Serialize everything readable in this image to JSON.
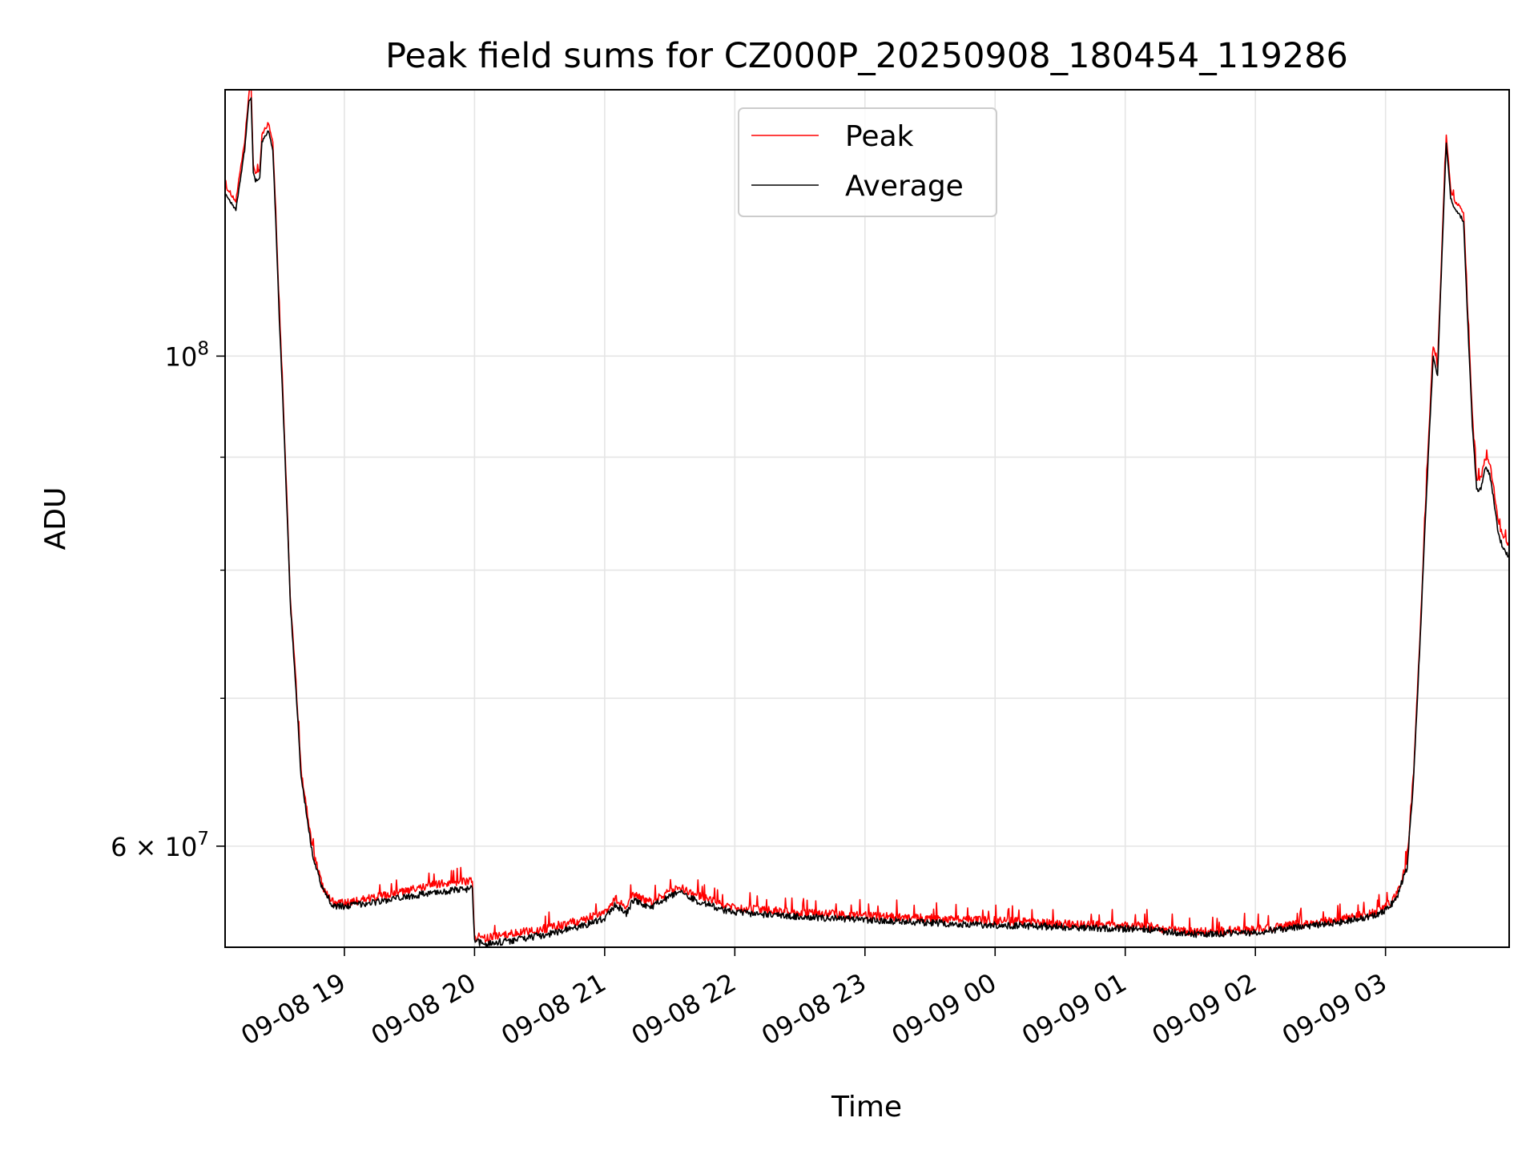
{
  "chart_data": {
    "type": "line",
    "title": "Peak field sums for CZ000P_20250908_180454_119286",
    "xlabel": "Time",
    "ylabel": "ADU",
    "y_scale": "log",
    "ylim": [
      54000000,
      132000000
    ],
    "xlim": [
      "2025-09-08 18:05",
      "2025-09-09 03:57"
    ],
    "grid": true,
    "legend_position": "top-center",
    "x_ticks": [
      {
        "t": "2025-09-08 19:00",
        "label": "09-08 19"
      },
      {
        "t": "2025-09-08 20:00",
        "label": "09-08 20"
      },
      {
        "t": "2025-09-08 21:00",
        "label": "09-08 21"
      },
      {
        "t": "2025-09-08 22:00",
        "label": "09-08 22"
      },
      {
        "t": "2025-09-08 23:00",
        "label": "09-08 23"
      },
      {
        "t": "2025-09-09 00:00",
        "label": "09-09 00"
      },
      {
        "t": "2025-09-09 01:00",
        "label": "09-09 01"
      },
      {
        "t": "2025-09-09 02:00",
        "label": "09-09 02"
      },
      {
        "t": "2025-09-09 03:00",
        "label": "09-09 03"
      }
    ],
    "y_ticks": [
      {
        "value": 100000000,
        "base": "10",
        "exp": "8",
        "mant": ""
      },
      {
        "value": 60000000,
        "base": "10",
        "exp": "7",
        "mant": "6 × "
      }
    ],
    "y_minor_ticks": [
      70000000,
      80000000,
      90000000
    ],
    "x": [
      "2025-09-08 18:05",
      "2025-09-08 18:10",
      "2025-09-08 18:14",
      "2025-09-08 18:16",
      "2025-09-08 18:17",
      "2025-09-08 18:18",
      "2025-09-08 18:19",
      "2025-09-08 18:21",
      "2025-09-08 18:22",
      "2025-09-08 18:24",
      "2025-09-08 18:25",
      "2025-09-08 18:27",
      "2025-09-08 18:30",
      "2025-09-08 18:35",
      "2025-09-08 18:40",
      "2025-09-08 18:45",
      "2025-09-08 18:50",
      "2025-09-08 18:55",
      "2025-09-08 19:00",
      "2025-09-08 19:10",
      "2025-09-08 19:20",
      "2025-09-08 19:30",
      "2025-09-08 19:40",
      "2025-09-08 19:50",
      "2025-09-08 19:59",
      "2025-09-08 20:00",
      "2025-09-08 20:05",
      "2025-09-08 20:15",
      "2025-09-08 20:30",
      "2025-09-08 20:45",
      "2025-09-08 21:00",
      "2025-09-08 21:05",
      "2025-09-08 21:10",
      "2025-09-08 21:13",
      "2025-09-08 21:17",
      "2025-09-08 21:22",
      "2025-09-08 21:25",
      "2025-09-08 21:30",
      "2025-09-08 21:33",
      "2025-09-08 21:37",
      "2025-09-08 21:42",
      "2025-09-08 21:47",
      "2025-09-08 21:53",
      "2025-09-08 21:58",
      "2025-09-08 22:05",
      "2025-09-08 22:15",
      "2025-09-08 22:30",
      "2025-09-08 22:45",
      "2025-09-08 23:00",
      "2025-09-08 23:20",
      "2025-09-08 23:40",
      "2025-09-09 00:00",
      "2025-09-09 00:20",
      "2025-09-09 00:40",
      "2025-09-09 01:00",
      "2025-09-09 01:10",
      "2025-09-09 01:20",
      "2025-09-09 01:30",
      "2025-09-09 01:40",
      "2025-09-09 02:00",
      "2025-09-09 02:20",
      "2025-09-09 02:40",
      "2025-09-09 02:55",
      "2025-09-09 03:00",
      "2025-09-09 03:05",
      "2025-09-09 03:10",
      "2025-09-09 03:13",
      "2025-09-09 03:16",
      "2025-09-09 03:19",
      "2025-09-09 03:22",
      "2025-09-09 03:24",
      "2025-09-09 03:26",
      "2025-09-09 03:28",
      "2025-09-09 03:30",
      "2025-09-09 03:32",
      "2025-09-09 03:34",
      "2025-09-09 03:36",
      "2025-09-09 03:38",
      "2025-09-09 03:40",
      "2025-09-09 03:42",
      "2025-09-09 03:44",
      "2025-09-09 03:46",
      "2025-09-09 03:48",
      "2025-09-09 03:50",
      "2025-09-09 03:52",
      "2025-09-09 03:54",
      "2025-09-09 03:57"
    ],
    "series": [
      {
        "name": "Peak",
        "color": "#ff0000",
        "values": [
          119500000,
          117500000,
          125000000,
          131500000,
          132000000,
          122000000,
          121000000,
          121500000,
          126000000,
          127000000,
          127500000,
          125000000,
          105000000,
          78000000,
          65000000,
          60000000,
          57500000,
          56600000,
          56500000,
          56800000,
          57000000,
          57300000,
          57600000,
          57800000,
          57900000,
          54600000,
          54500000,
          54700000,
          55000000,
          55400000,
          56000000,
          56800000,
          56200000,
          57000000,
          56800000,
          56600000,
          56900000,
          57200000,
          57400000,
          57400000,
          57000000,
          56800000,
          56500000,
          56300000,
          56200000,
          56100000,
          56000000,
          55900000,
          55800000,
          55700000,
          55600000,
          55500000,
          55400000,
          55300000,
          55200000,
          55200000,
          55000000,
          54900000,
          54900000,
          55000000,
          55300000,
          55600000,
          56000000,
          56300000,
          57000000,
          59000000,
          65000000,
          75000000,
          88000000,
          101000000,
          99000000,
          112000000,
          126000000,
          119000000,
          117500000,
          117000000,
          116000000,
          104000000,
          94000000,
          88000000,
          88000000,
          90000000,
          89500000,
          87000000,
          84000000,
          83000000,
          82000000
        ],
        "noise": 250000
      },
      {
        "name": "Average",
        "color": "#000000",
        "values": [
          118500000,
          116500000,
          124000000,
          130500000,
          131000000,
          121000000,
          120000000,
          120500000,
          125000000,
          126000000,
          126500000,
          124000000,
          104000000,
          77500000,
          64500000,
          59700000,
          57300000,
          56400000,
          56350000,
          56550000,
          56700000,
          56950000,
          57150000,
          57300000,
          57400000,
          54300000,
          54200000,
          54350000,
          54650000,
          55050000,
          55650000,
          56450000,
          55900000,
          56700000,
          56500000,
          56300000,
          56600000,
          56900000,
          57100000,
          57100000,
          56700000,
          56500000,
          56200000,
          56050000,
          55950000,
          55850000,
          55750000,
          55650000,
          55550000,
          55450000,
          55350000,
          55250000,
          55200000,
          55100000,
          55050000,
          55050000,
          54850000,
          54750000,
          54750000,
          54850000,
          55150000,
          55450000,
          55850000,
          56150000,
          56800000,
          58700000,
          64500000,
          74500000,
          87000000,
          100000000,
          98000000,
          111000000,
          125000000,
          118000000,
          116500000,
          116000000,
          115000000,
          103000000,
          93000000,
          87000000,
          87000000,
          89000000,
          88500000,
          86000000,
          83000000,
          82000000,
          81000000
        ],
        "noise": 200000
      }
    ]
  }
}
